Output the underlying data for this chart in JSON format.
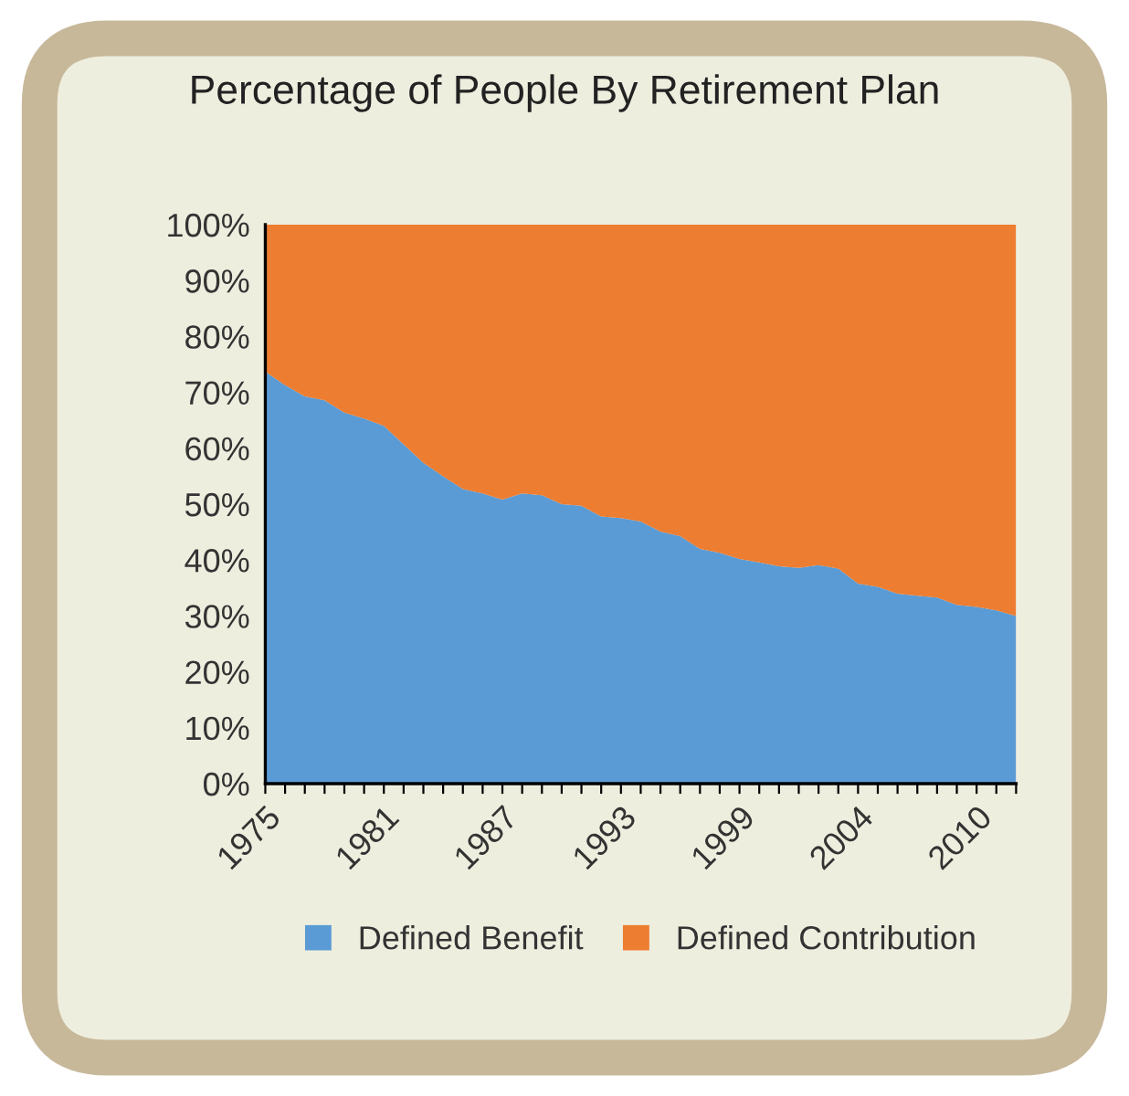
{
  "chart_data": {
    "type": "area",
    "stacked": true,
    "title": "Percentage of People By Retirement Plan",
    "categories": [
      "1975",
      null,
      null,
      null,
      null,
      null,
      "1981",
      null,
      null,
      null,
      null,
      null,
      "1987",
      null,
      null,
      null,
      null,
      null,
      "1993",
      null,
      null,
      null,
      null,
      null,
      "1999",
      null,
      null,
      null,
      null,
      null,
      "2004",
      null,
      null,
      null,
      null,
      null,
      "2010",
      null,
      null
    ],
    "series": [
      {
        "name": "Defined Benefit",
        "color": "#5b9bd5",
        "values": [
          73.7,
          71.3,
          69.3,
          68.6,
          66.4,
          65.3,
          64.0,
          60.7,
          57.4,
          55.0,
          52.7,
          51.9,
          50.8,
          51.9,
          51.6,
          50.0,
          49.7,
          47.8,
          47.5,
          46.9,
          45.1,
          44.3,
          42.0,
          41.3,
          40.2,
          39.6,
          38.9,
          38.6,
          39.1,
          38.5,
          35.8,
          35.2,
          34.0,
          33.6,
          33.3,
          32.0,
          31.6,
          31.0,
          30.0
        ]
      },
      {
        "name": "Defined Contribution",
        "color": "#ed7d31",
        "values": [
          26.3,
          28.7,
          30.7,
          31.4,
          33.6,
          34.7,
          36.0,
          39.3,
          42.6,
          45.0,
          47.3,
          48.1,
          49.2,
          48.1,
          48.4,
          50.0,
          50.3,
          52.2,
          52.5,
          53.1,
          54.9,
          55.7,
          58.0,
          58.7,
          59.8,
          60.4,
          61.1,
          61.4,
          60.9,
          61.5,
          64.2,
          64.8,
          66.0,
          66.4,
          66.7,
          68.0,
          68.4,
          69.0,
          70.0
        ]
      }
    ],
    "ylim": [
      0,
      100
    ],
    "yticks": [
      {
        "value": 0,
        "label": "0%"
      },
      {
        "value": 10,
        "label": "10%"
      },
      {
        "value": 20,
        "label": "20%"
      },
      {
        "value": 30,
        "label": "30%"
      },
      {
        "value": 40,
        "label": "40%"
      },
      {
        "value": 50,
        "label": "50%"
      },
      {
        "value": 60,
        "label": "60%"
      },
      {
        "value": 70,
        "label": "70%"
      },
      {
        "value": 80,
        "label": "80%"
      },
      {
        "value": 90,
        "label": "90%"
      },
      {
        "value": 100,
        "label": "100%"
      }
    ],
    "grid": false,
    "legend": "bottom"
  }
}
